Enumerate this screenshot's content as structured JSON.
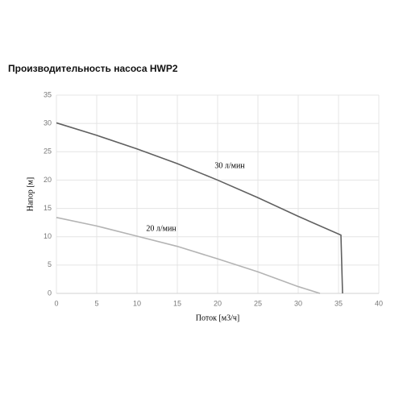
{
  "chart_data": {
    "type": "line",
    "title": "Производительность насоса HWP2",
    "x_label": "Поток [м3/ч]",
    "y_label": "Напор [м]",
    "xlim": [
      0,
      40
    ],
    "xticks": [
      0,
      5,
      10,
      15,
      20,
      25,
      30,
      35,
      40
    ],
    "ylim": [
      0,
      35
    ],
    "yticks": [
      0,
      5,
      10,
      15,
      20,
      25,
      30,
      35
    ],
    "grid": true,
    "series": [
      {
        "name": "30 л/мин",
        "color": "#606060",
        "x": [
          0,
          5,
          10,
          15,
          20,
          25,
          30,
          35.3,
          35.5
        ],
        "values": [
          30.1,
          27.9,
          25.5,
          22.9,
          20,
          16.9,
          13.6,
          10.3,
          0
        ]
      },
      {
        "name": "20 л/мин",
        "color": "#b4b4b4",
        "x": [
          0,
          5,
          10,
          15,
          20,
          25,
          30,
          32.7
        ],
        "values": [
          13.4,
          11.9,
          10.1,
          8.3,
          6.1,
          3.8,
          1.2,
          0
        ]
      }
    ]
  }
}
